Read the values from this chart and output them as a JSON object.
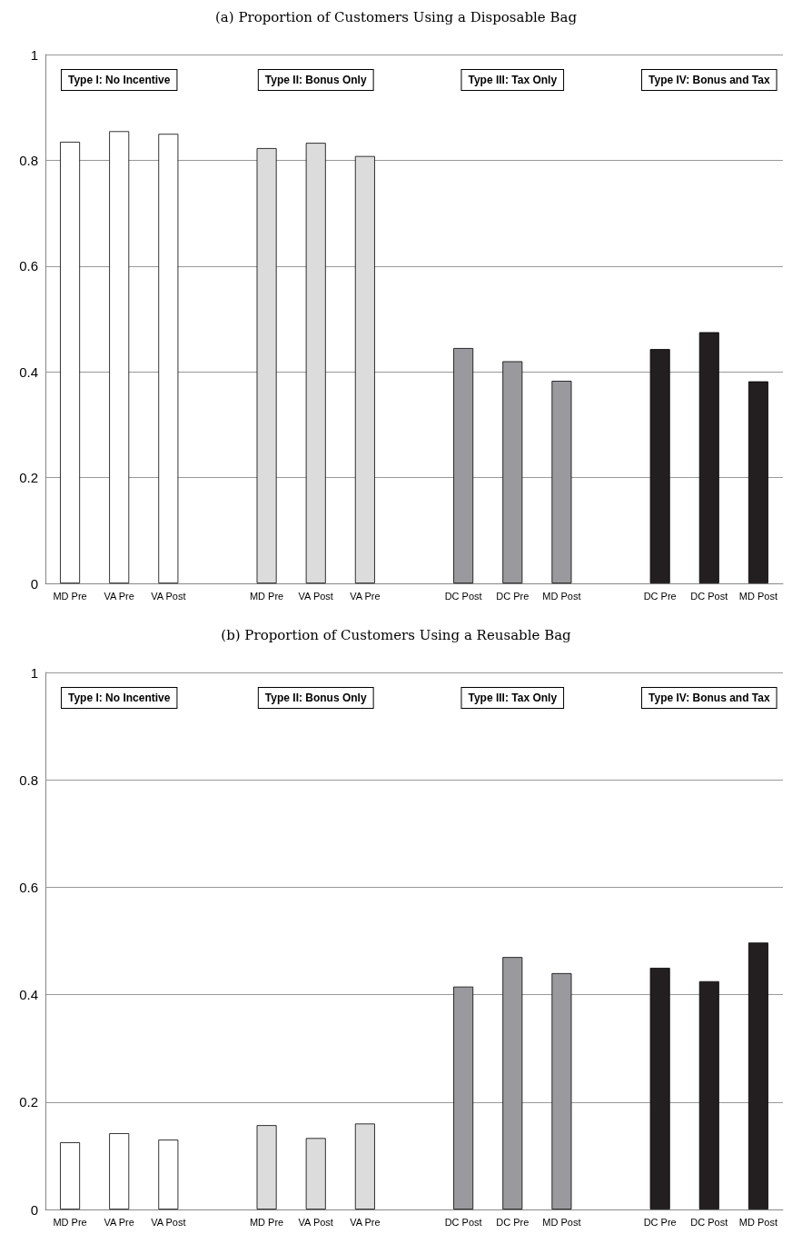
{
  "chart_data": [
    {
      "type": "bar",
      "title": "(a) Proportion of Customers Using a Disposable Bag",
      "categories": [
        "MD Pre",
        "VA Pre",
        "VA Post",
        null,
        "MD Pre",
        "VA Post",
        "VA Pre",
        null,
        "DC Post",
        "DC Pre",
        "MD Post",
        null,
        "DC Pre",
        "DC Post",
        "MD Post"
      ],
      "values": [
        0.835,
        0.855,
        0.85,
        null,
        0.823,
        0.833,
        0.808,
        null,
        0.445,
        0.42,
        0.383,
        null,
        0.443,
        0.475,
        0.382
      ],
      "colors": [
        "#ffffff",
        "#ffffff",
        "#ffffff",
        null,
        "#dcdcdc",
        "#dcdcdc",
        "#dcdcdc",
        null,
        "#9a9a9e",
        "#9a9a9e",
        "#9a9a9e",
        null,
        "#231f20",
        "#231f20",
        "#231f20"
      ],
      "ylim": [
        0,
        1
      ],
      "yticks": [
        0,
        0.2,
        0.4,
        0.6,
        0.8,
        1
      ],
      "grid": "y",
      "annotations": [
        "Type I: No Incentive",
        "Type II: Bonus Only",
        "Type III: Tax Only",
        "Type IV: Bonus and Tax"
      ]
    },
    {
      "type": "bar",
      "title": "(b) Proportion of Customers Using a Reusable Bag",
      "categories": [
        "MD Pre",
        "VA Pre",
        "VA Post",
        null,
        "MD Pre",
        "VA Post",
        "VA Pre",
        null,
        "DC Post",
        "DC Pre",
        "MD Post",
        null,
        "DC Pre",
        "DC Post",
        "MD Post"
      ],
      "values": [
        0.125,
        0.142,
        0.13,
        null,
        0.157,
        0.133,
        0.16,
        null,
        0.415,
        0.47,
        0.44,
        null,
        0.45,
        0.425,
        0.497
      ],
      "colors": [
        "#ffffff",
        "#ffffff",
        "#ffffff",
        null,
        "#dcdcdc",
        "#dcdcdc",
        "#dcdcdc",
        null,
        "#9a9a9e",
        "#9a9a9e",
        "#9a9a9e",
        null,
        "#231f20",
        "#231f20",
        "#231f20"
      ],
      "ylim": [
        0,
        1
      ],
      "yticks": [
        0,
        0.2,
        0.4,
        0.6,
        0.8,
        1
      ],
      "grid": "y",
      "annotations": [
        "Type I: No Incentive",
        "Type II: Bonus Only",
        "Type III: Tax Only",
        "Type IV: Bonus and Tax"
      ]
    }
  ]
}
